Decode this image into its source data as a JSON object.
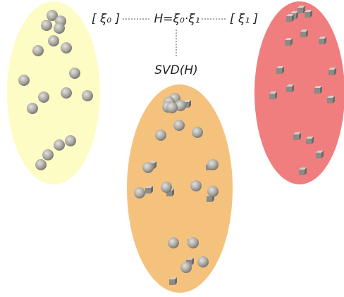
{
  "labels": {
    "left": "[ ξ₀ ]",
    "center": "H=ξ₀·ξ₁",
    "right": "[ ξ₁ ]",
    "below": "SVD(H)"
  }
}
